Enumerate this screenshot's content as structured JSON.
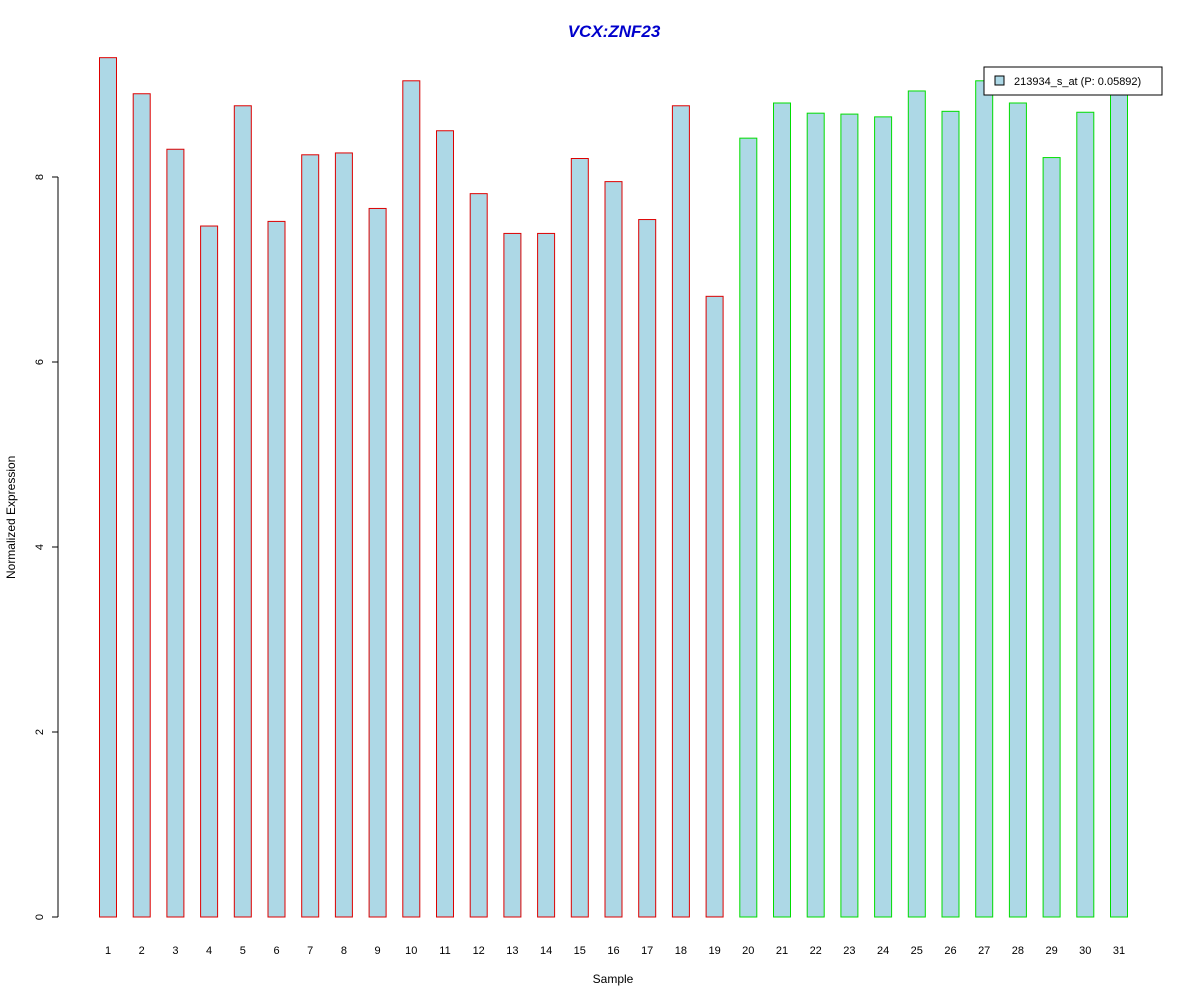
{
  "chart_data": {
    "type": "bar",
    "title": "VCX:ZNF23",
    "xlabel": "Sample",
    "ylabel": "Normalized Expression",
    "categories": [
      "1",
      "2",
      "3",
      "4",
      "5",
      "6",
      "7",
      "8",
      "9",
      "10",
      "11",
      "12",
      "13",
      "14",
      "15",
      "16",
      "17",
      "18",
      "19",
      "20",
      "21",
      "22",
      "23",
      "24",
      "25",
      "26",
      "27",
      "28",
      "29",
      "30",
      "31"
    ],
    "series": [
      {
        "name": "213934_s_at (P: 0.05892)",
        "values": [
          9.29,
          8.9,
          8.3,
          7.47,
          8.77,
          7.52,
          8.24,
          8.26,
          7.66,
          9.04,
          8.5,
          7.82,
          7.39,
          7.39,
          8.2,
          7.95,
          7.54,
          8.77,
          6.71,
          8.42,
          8.8,
          8.69,
          8.68,
          8.65,
          8.93,
          8.71,
          9.04,
          8.8,
          8.21,
          8.7,
          9.0
        ]
      }
    ],
    "groups": [
      {
        "samples": "1-19",
        "border_color": "#dd0000"
      },
      {
        "samples": "20-31",
        "border_color": "#00dd00"
      }
    ],
    "yticks": [
      0,
      2,
      4,
      6,
      8
    ],
    "ylim": [
      0,
      9.29
    ],
    "grid": false,
    "legend_position": "top-right",
    "colors": {
      "bar_fill": "#add8e6",
      "group1_border": "#dd0000",
      "group2_border": "#00dd00",
      "title_color": "#0000cc"
    }
  }
}
